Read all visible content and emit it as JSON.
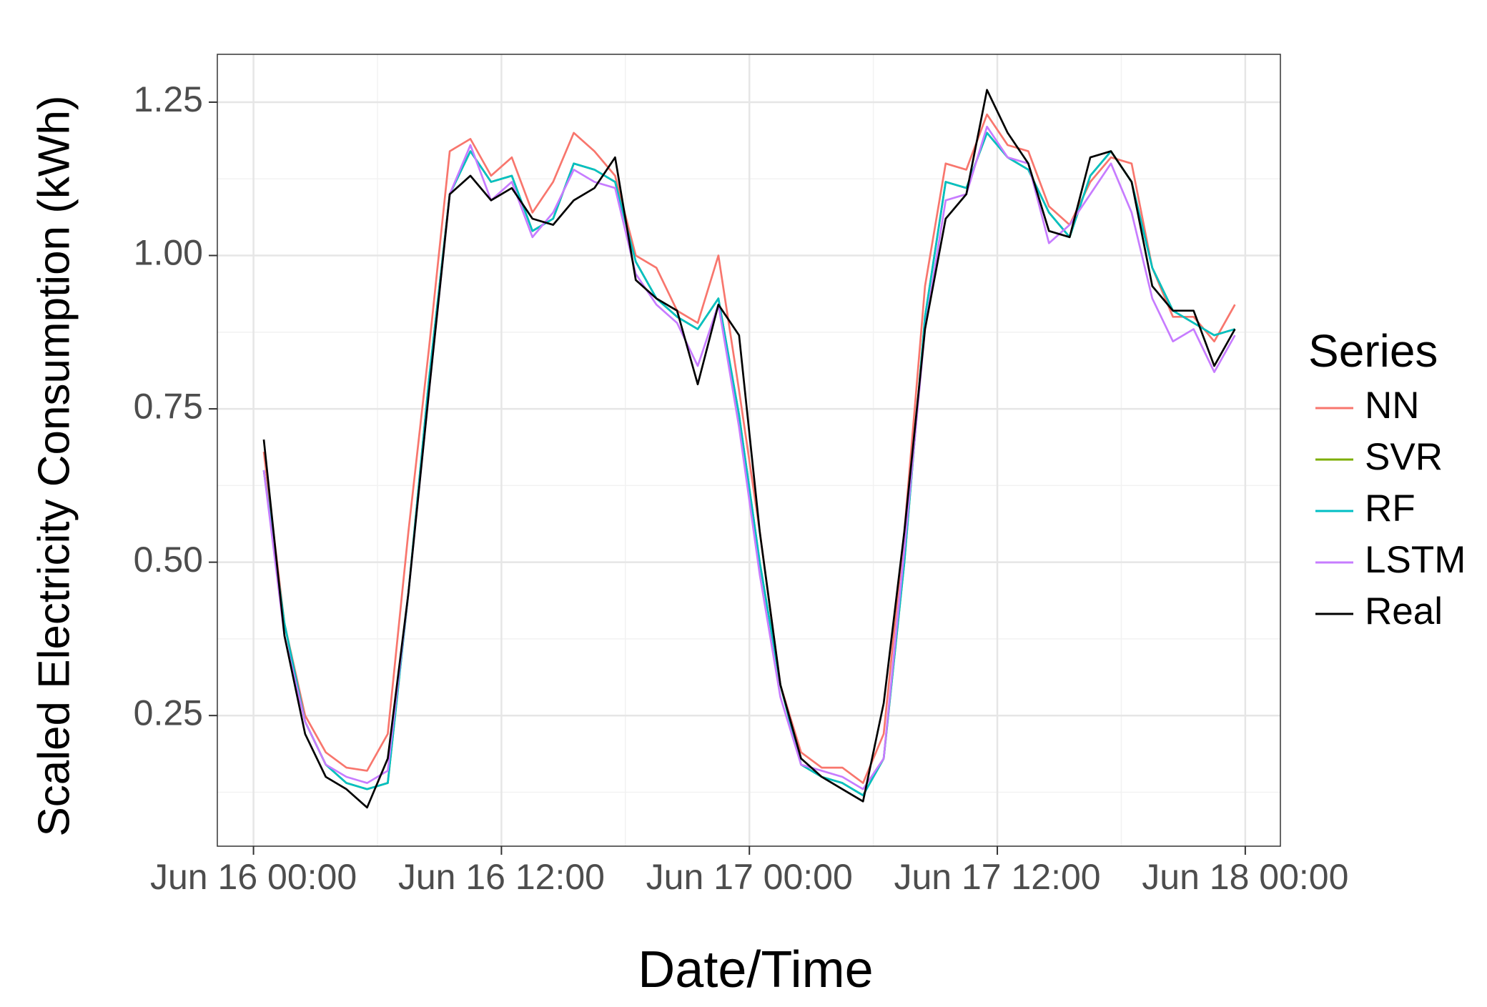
{
  "chart_data": {
    "type": "line",
    "x_label": "Date/Time",
    "y_label": "Scaled Electricity Consumption (kWh)",
    "legend_title": "Series",
    "legend": "right",
    "grid": true,
    "x": [
      0.5,
      1.5,
      2.5,
      3.5,
      4.5,
      5.5,
      6.5,
      7.5,
      8.5,
      9.5,
      10.5,
      11.5,
      12.5,
      13.5,
      14.5,
      15.5,
      16.5,
      17.5,
      18.5,
      19.5,
      20.5,
      21.5,
      22.5,
      23.5,
      24.5,
      25.5,
      26.5,
      27.5,
      28.5,
      29.5,
      30.5,
      31.5,
      32.5,
      33.5,
      34.5,
      35.5,
      36.5,
      37.5,
      38.5,
      39.5,
      40.5,
      41.5,
      42.5,
      43.5,
      44.5,
      45.5,
      46.5,
      47.5
    ],
    "xlim": [
      -1.75,
      49.7
    ],
    "xticks": [
      {
        "value": 0,
        "label": "Jun 16 00:00"
      },
      {
        "value": 12,
        "label": "Jun 16 12:00"
      },
      {
        "value": 24,
        "label": "Jun 17 00:00"
      },
      {
        "value": 36,
        "label": "Jun 17 12:00"
      },
      {
        "value": 48,
        "label": "Jun 18 00:00"
      }
    ],
    "xticks_minor": [
      -6,
      6,
      18,
      30,
      42
    ],
    "ylim": [
      0.037,
      1.328
    ],
    "yticks": [
      0.25,
      {
        "value": 0.5,
        "label": "0.50"
      },
      0.75,
      {
        "value": 1,
        "label": "1.00"
      },
      1.25
    ],
    "yticks_minor": [
      0.125,
      0.375,
      0.625,
      0.875,
      1.125
    ],
    "series": [
      {
        "name": "NN",
        "color": "#F8766D",
        "values": [
          0.68,
          0.4,
          0.25,
          0.19,
          0.165,
          0.16,
          0.22,
          0.55,
          0.85,
          1.17,
          1.19,
          1.13,
          1.16,
          1.07,
          1.12,
          1.2,
          1.17,
          1.13,
          1.0,
          0.98,
          0.91,
          0.89,
          1.0,
          0.78,
          0.55,
          0.3,
          0.19,
          0.165,
          0.165,
          0.14,
          0.22,
          0.55,
          0.95,
          1.15,
          1.14,
          1.23,
          1.18,
          1.17,
          1.08,
          1.05,
          1.12,
          1.16,
          1.15,
          0.98,
          0.9,
          0.9,
          0.86,
          0.92
        ]
      },
      {
        "name": "SVR",
        "color": "#7CAE00",
        "values": [
          0.65,
          0.4,
          0.24,
          0.17,
          0.14,
          0.13,
          0.14,
          0.45,
          0.8,
          1.1,
          1.17,
          1.12,
          1.13,
          1.04,
          1.06,
          1.15,
          1.14,
          1.12,
          0.99,
          0.93,
          0.9,
          0.88,
          0.93,
          0.74,
          0.5,
          0.3,
          0.17,
          0.15,
          0.14,
          0.12,
          0.18,
          0.5,
          0.9,
          1.12,
          1.11,
          1.2,
          1.16,
          1.14,
          1.07,
          1.03,
          1.13,
          1.17,
          1.12,
          0.98,
          0.91,
          0.89,
          0.87,
          0.88
        ]
      },
      {
        "name": "RF",
        "color": "#00BFC4",
        "values": [
          0.65,
          0.4,
          0.24,
          0.17,
          0.14,
          0.13,
          0.14,
          0.45,
          0.8,
          1.1,
          1.17,
          1.12,
          1.13,
          1.04,
          1.06,
          1.15,
          1.14,
          1.12,
          0.99,
          0.93,
          0.9,
          0.88,
          0.93,
          0.74,
          0.5,
          0.3,
          0.17,
          0.15,
          0.14,
          0.12,
          0.18,
          0.5,
          0.9,
          1.12,
          1.11,
          1.2,
          1.16,
          1.14,
          1.07,
          1.03,
          1.13,
          1.17,
          1.12,
          0.98,
          0.91,
          0.89,
          0.87,
          0.88
        ]
      },
      {
        "name": "LSTM",
        "color": "#C77CFF",
        "values": [
          0.65,
          0.38,
          0.24,
          0.17,
          0.15,
          0.14,
          0.16,
          0.45,
          0.78,
          1.1,
          1.18,
          1.09,
          1.12,
          1.03,
          1.07,
          1.14,
          1.12,
          1.11,
          0.97,
          0.92,
          0.89,
          0.82,
          0.92,
          0.72,
          0.48,
          0.28,
          0.17,
          0.16,
          0.15,
          0.13,
          0.18,
          0.52,
          0.88,
          1.09,
          1.1,
          1.21,
          1.16,
          1.15,
          1.02,
          1.05,
          1.1,
          1.15,
          1.07,
          0.93,
          0.86,
          0.88,
          0.81,
          0.87
        ]
      },
      {
        "name": "Real",
        "color": "#000000",
        "values": [
          0.7,
          0.38,
          0.22,
          0.15,
          0.13,
          0.1,
          0.18,
          0.45,
          0.78,
          1.1,
          1.13,
          1.09,
          1.11,
          1.06,
          1.05,
          1.09,
          1.11,
          1.16,
          0.96,
          0.93,
          0.91,
          0.79,
          0.92,
          0.87,
          0.55,
          0.3,
          0.18,
          0.15,
          0.13,
          0.11,
          0.27,
          0.55,
          0.88,
          1.06,
          1.1,
          1.27,
          1.2,
          1.15,
          1.04,
          1.03,
          1.16,
          1.17,
          1.12,
          0.95,
          0.91,
          0.91,
          0.82,
          0.88
        ]
      }
    ]
  }
}
